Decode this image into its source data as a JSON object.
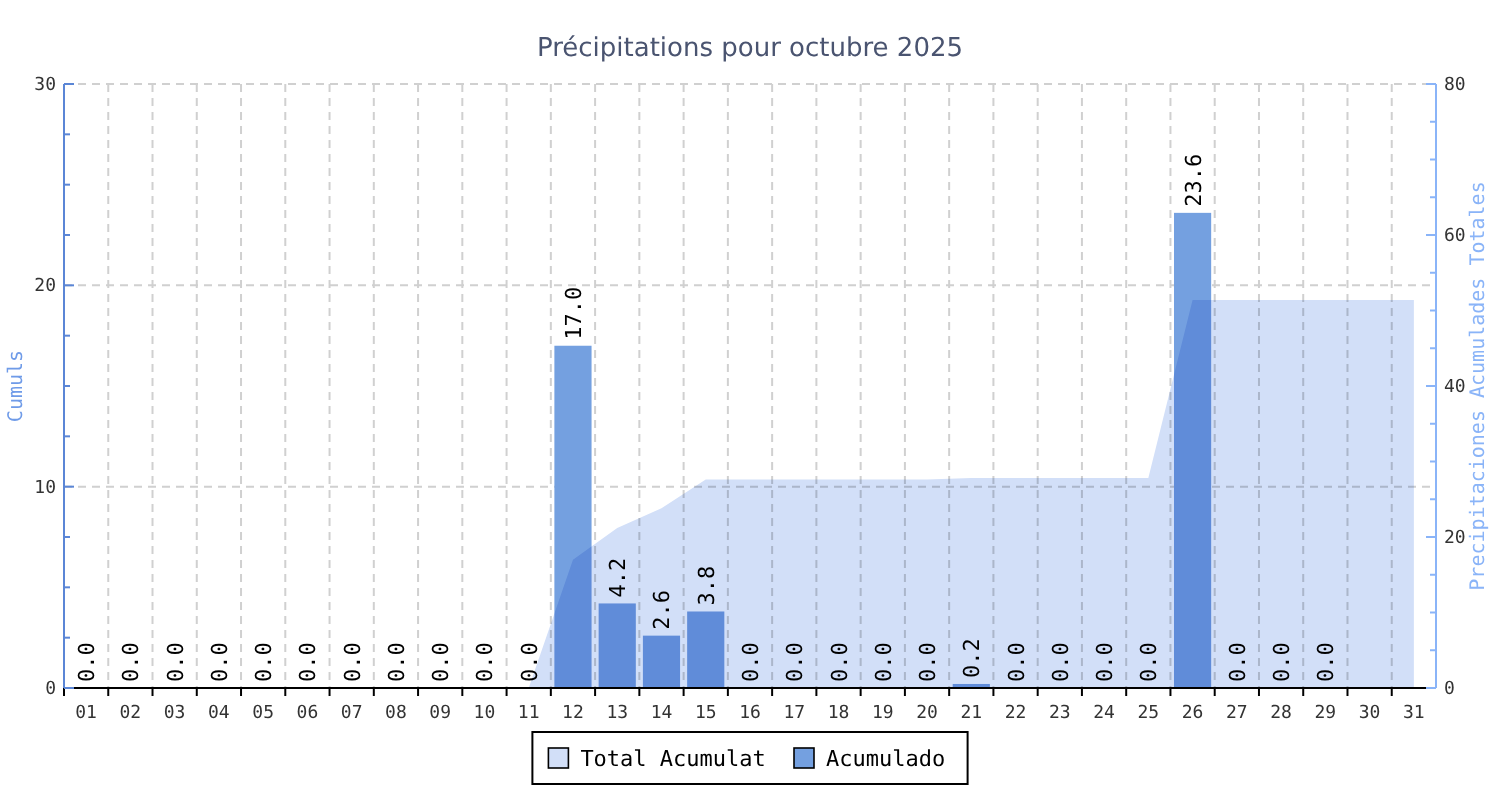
{
  "chart_data": {
    "type": "bar",
    "title": "Précipitations pour octubre 2025",
    "ylabel": "Cumuls",
    "y2label": "Precipitaciones Acumulades Totales",
    "categories": [
      "01",
      "02",
      "03",
      "04",
      "05",
      "06",
      "07",
      "08",
      "09",
      "10",
      "11",
      "12",
      "13",
      "14",
      "15",
      "16",
      "17",
      "18",
      "19",
      "20",
      "21",
      "22",
      "23",
      "24",
      "25",
      "26",
      "27",
      "28",
      "29",
      "30",
      "31"
    ],
    "series": [
      {
        "name": "Total Acumulat",
        "type": "area",
        "axis": "y2",
        "color": "#d2dff8",
        "values": [
          0,
          0,
          0,
          0,
          0,
          0,
          0,
          0,
          0,
          0,
          0,
          17.0,
          21.2,
          23.8,
          27.6,
          27.6,
          27.6,
          27.6,
          27.6,
          27.6,
          27.8,
          27.8,
          27.8,
          27.8,
          27.8,
          51.4,
          51.4,
          51.4,
          51.4,
          51.4,
          51.4
        ]
      },
      {
        "name": "Acumulado",
        "color": "#74a0e0",
        "values": [
          0,
          0,
          0,
          0,
          0,
          0,
          0,
          0,
          0,
          0,
          0,
          17.0,
          4.2,
          2.6,
          3.8,
          0,
          0,
          0,
          0,
          0,
          0.2,
          0,
          0,
          0,
          0,
          23.6,
          0,
          0,
          0,
          null,
          null
        ],
        "value_labels": [
          "0.0",
          "0.0",
          "0.0",
          "0.0",
          "0.0",
          "0.0",
          "0.0",
          "0.0",
          "0.0",
          "0.0",
          "0.0",
          "17.0",
          "4.2",
          "2.6",
          "3.8",
          "0.0",
          "0.0",
          "0.0",
          "0.0",
          "0.0",
          "0.2",
          "0.0",
          "0.0",
          "0.0",
          "0.0",
          "23.6",
          "0.0",
          "0.0",
          "0.0",
          null,
          null
        ]
      }
    ],
    "ylim": [
      0,
      30
    ],
    "yticks": [
      0,
      {
        "value": 2.5,
        "label": null
      },
      {
        "value": 5,
        "label": null
      },
      {
        "value": 7.5,
        "label": null
      },
      10,
      {
        "value": 12.5,
        "label": null
      },
      {
        "value": 15,
        "label": null
      },
      {
        "value": 17.5,
        "label": null
      },
      20,
      {
        "value": 22.5,
        "label": null
      },
      {
        "value": 25,
        "label": null
      },
      {
        "value": 27.5,
        "label": null
      },
      30
    ],
    "y2lim": [
      0,
      80
    ],
    "y2ticks": [
      0,
      {
        "value": 5,
        "label": null
      },
      {
        "value": 10,
        "label": null
      },
      {
        "value": 15,
        "label": null
      },
      20,
      {
        "value": 25,
        "label": null
      },
      {
        "value": 30,
        "label": null
      },
      {
        "value": 35,
        "label": null
      },
      40,
      {
        "value": 45,
        "label": null
      },
      {
        "value": 50,
        "label": null
      },
      {
        "value": 55,
        "label": null
      },
      60,
      {
        "value": 65,
        "label": null
      },
      {
        "value": 70,
        "label": null
      },
      {
        "value": 75,
        "label": null
      },
      80
    ],
    "grid": true,
    "legend": "bottom"
  }
}
